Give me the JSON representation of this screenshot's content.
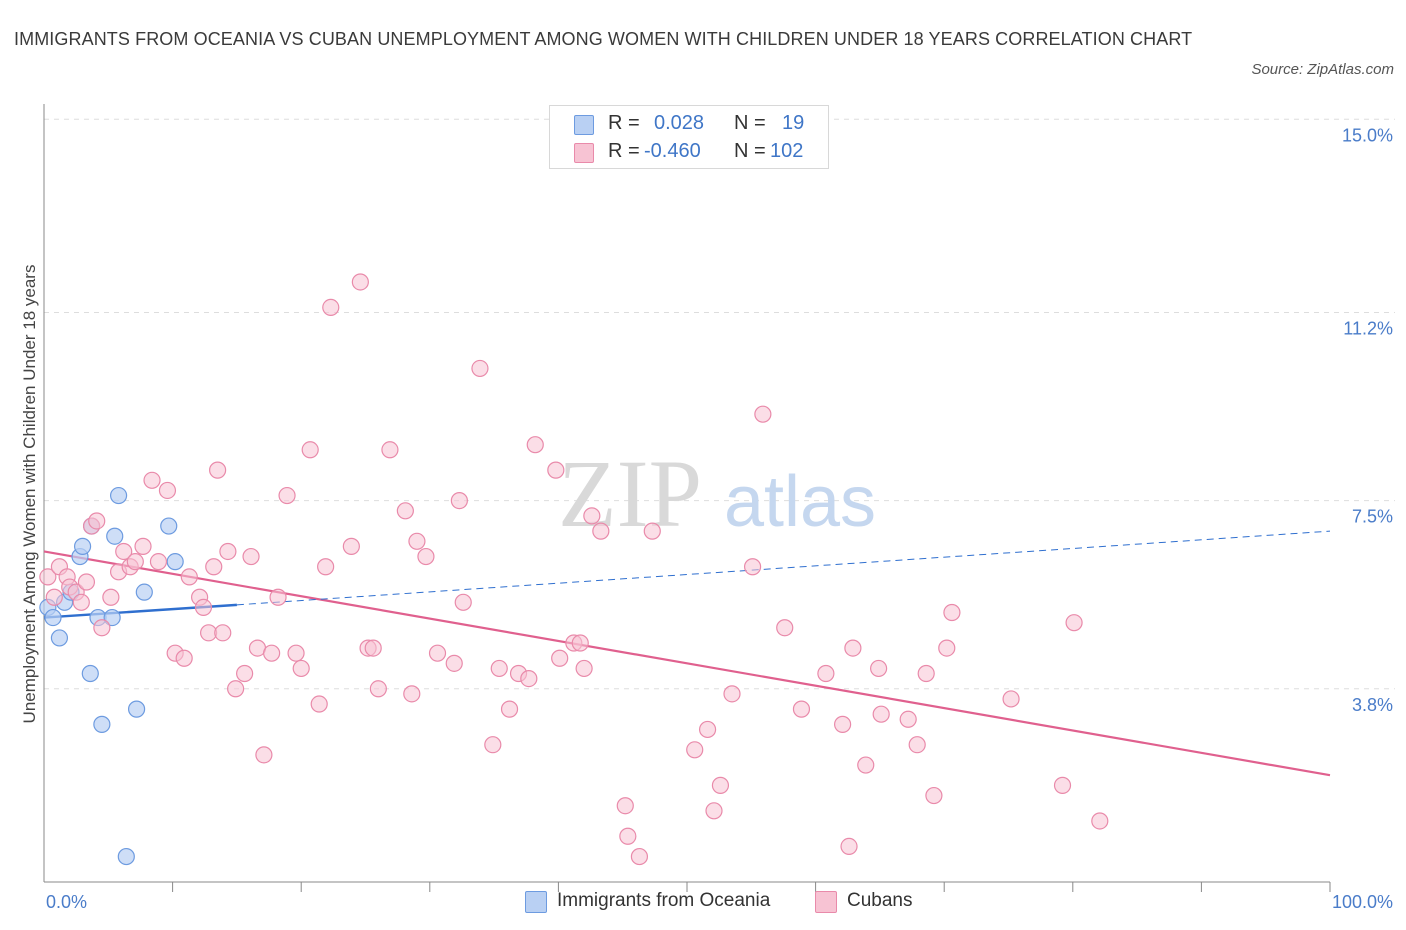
{
  "header": {
    "title": "IMMIGRANTS FROM OCEANIA VS CUBAN UNEMPLOYMENT AMONG WOMEN WITH CHILDREN UNDER 18 YEARS CORRELATION CHART",
    "source": "Source: ZipAtlas.com"
  },
  "watermark": {
    "zip": "ZIP",
    "atlas": "atlas"
  },
  "legend": {
    "rows": [
      {
        "r_label": "R =",
        "r_value": "0.028",
        "n_label": "N =",
        "n_value": "19"
      },
      {
        "r_label": "R =",
        "r_value": "-0.460",
        "n_label": "N =",
        "n_value": "102"
      }
    ],
    "bottom": [
      "Immigrants from Oceania",
      "Cubans"
    ]
  },
  "colors": {
    "oceania_fill": "#b9d0f3",
    "oceania_stroke": "#6d9be0",
    "oceania_line": "#2f6fcf",
    "cuban_fill": "#f7c3d3",
    "cuban_stroke": "#e98aaa",
    "cuban_line": "#e0608e",
    "grid": "#dddddd",
    "axis": "#888888",
    "tick_text": "#4a7cc9"
  },
  "chart_data": {
    "type": "scatter",
    "title": "IMMIGRANTS FROM OCEANIA VS CUBAN UNEMPLOYMENT AMONG WOMEN WITH CHILDREN UNDER 18 YEARS CORRELATION CHART",
    "xlabel": "",
    "ylabel": "Unemployment Among Women with Children Under 18 years",
    "xlim": [
      0,
      100
    ],
    "ylim": [
      0,
      15.3
    ],
    "x_tick_labels": [
      {
        "value": 0,
        "label": "0.0%"
      },
      {
        "value": 100,
        "label": "100.0%"
      }
    ],
    "y_tick_labels": [
      {
        "value": 3.8,
        "label": "3.8%"
      },
      {
        "value": 7.5,
        "label": "7.5%"
      },
      {
        "value": 11.2,
        "label": "11.2%"
      },
      {
        "value": 15.0,
        "label": "15.0%"
      }
    ],
    "x_minor_ticks": [
      10,
      20,
      30,
      40,
      50,
      60,
      70,
      80,
      90,
      100
    ],
    "series": [
      {
        "name": "Immigrants from Oceania",
        "R": 0.028,
        "N": 19,
        "trend": {
          "solid": [
            [
              0,
              5.2
            ],
            [
              15,
              5.45
            ]
          ],
          "dashed": [
            [
              15,
              5.45
            ],
            [
              100,
              6.9
            ]
          ]
        },
        "points": [
          [
            0.3,
            5.4
          ],
          [
            0.7,
            5.2
          ],
          [
            1.2,
            4.8
          ],
          [
            1.6,
            5.5
          ],
          [
            2.1,
            5.7
          ],
          [
            2.8,
            6.4
          ],
          [
            3.0,
            6.6
          ],
          [
            3.6,
            4.1
          ],
          [
            3.7,
            7.0
          ],
          [
            4.2,
            5.2
          ],
          [
            4.5,
            3.1
          ],
          [
            5.3,
            5.2
          ],
          [
            5.5,
            6.8
          ],
          [
            5.8,
            7.6
          ],
          [
            6.4,
            0.5
          ],
          [
            7.2,
            3.4
          ],
          [
            7.8,
            5.7
          ],
          [
            9.7,
            7.0
          ],
          [
            10.2,
            6.3
          ]
        ]
      },
      {
        "name": "Cubans",
        "R": -0.46,
        "N": 102,
        "trend": {
          "solid": [
            [
              0,
              6.5
            ],
            [
              100,
              2.1
            ]
          ]
        },
        "points": [
          [
            0.3,
            6.0
          ],
          [
            0.8,
            5.6
          ],
          [
            1.2,
            6.2
          ],
          [
            1.8,
            6.0
          ],
          [
            2.0,
            5.8
          ],
          [
            2.5,
            5.7
          ],
          [
            2.9,
            5.5
          ],
          [
            3.3,
            5.9
          ],
          [
            3.7,
            7.0
          ],
          [
            4.1,
            7.1
          ],
          [
            4.5,
            5.0
          ],
          [
            5.2,
            5.6
          ],
          [
            5.8,
            6.1
          ],
          [
            6.2,
            6.5
          ],
          [
            6.7,
            6.2
          ],
          [
            7.1,
            6.3
          ],
          [
            7.7,
            6.6
          ],
          [
            8.4,
            7.9
          ],
          [
            8.9,
            6.3
          ],
          [
            9.6,
            7.7
          ],
          [
            10.2,
            4.5
          ],
          [
            10.9,
            4.4
          ],
          [
            11.3,
            6.0
          ],
          [
            12.1,
            5.6
          ],
          [
            12.4,
            5.4
          ],
          [
            12.8,
            4.9
          ],
          [
            13.2,
            6.2
          ],
          [
            13.5,
            8.1
          ],
          [
            13.9,
            4.9
          ],
          [
            14.3,
            6.5
          ],
          [
            14.9,
            3.8
          ],
          [
            15.6,
            4.1
          ],
          [
            16.1,
            6.4
          ],
          [
            16.6,
            4.6
          ],
          [
            17.1,
            2.5
          ],
          [
            17.7,
            4.5
          ],
          [
            18.2,
            5.6
          ],
          [
            18.9,
            7.6
          ],
          [
            19.6,
            4.5
          ],
          [
            20.0,
            4.2
          ],
          [
            20.7,
            8.5
          ],
          [
            21.4,
            3.5
          ],
          [
            21.9,
            6.2
          ],
          [
            22.3,
            11.3
          ],
          [
            23.9,
            6.6
          ],
          [
            24.6,
            11.8
          ],
          [
            25.2,
            4.6
          ],
          [
            25.6,
            4.6
          ],
          [
            26.0,
            3.8
          ],
          [
            26.9,
            8.5
          ],
          [
            28.1,
            7.3
          ],
          [
            28.6,
            3.7
          ],
          [
            29.0,
            6.7
          ],
          [
            29.7,
            6.4
          ],
          [
            30.6,
            4.5
          ],
          [
            31.9,
            4.3
          ],
          [
            32.3,
            7.5
          ],
          [
            32.6,
            5.5
          ],
          [
            33.9,
            10.1
          ],
          [
            34.9,
            2.7
          ],
          [
            35.4,
            4.2
          ],
          [
            36.2,
            3.4
          ],
          [
            36.9,
            4.1
          ],
          [
            37.7,
            4.0
          ],
          [
            38.2,
            8.6
          ],
          [
            39.8,
            8.1
          ],
          [
            40.1,
            4.4
          ],
          [
            41.2,
            4.7
          ],
          [
            41.7,
            4.7
          ],
          [
            42.0,
            4.2
          ],
          [
            42.6,
            7.2
          ],
          [
            43.3,
            6.9
          ],
          [
            45.2,
            1.5
          ],
          [
            46.3,
            0.5
          ],
          [
            45.4,
            0.9
          ],
          [
            47.3,
            6.9
          ],
          [
            50.6,
            2.6
          ],
          [
            51.6,
            3.0
          ],
          [
            52.1,
            1.4
          ],
          [
            52.6,
            1.9
          ],
          [
            53.5,
            3.7
          ],
          [
            55.1,
            6.2
          ],
          [
            55.9,
            9.2
          ],
          [
            57.6,
            5.0
          ],
          [
            58.9,
            3.4
          ],
          [
            60.8,
            4.1
          ],
          [
            62.1,
            3.1
          ],
          [
            62.6,
            0.7
          ],
          [
            62.9,
            4.6
          ],
          [
            63.9,
            2.3
          ],
          [
            64.9,
            4.2
          ],
          [
            65.1,
            3.3
          ],
          [
            67.2,
            3.2
          ],
          [
            67.9,
            2.7
          ],
          [
            68.6,
            4.1
          ],
          [
            69.2,
            1.7
          ],
          [
            70.2,
            4.6
          ],
          [
            70.6,
            5.3
          ],
          [
            75.2,
            3.6
          ],
          [
            79.2,
            1.9
          ],
          [
            80.1,
            5.1
          ],
          [
            82.1,
            1.2
          ]
        ]
      }
    ]
  }
}
